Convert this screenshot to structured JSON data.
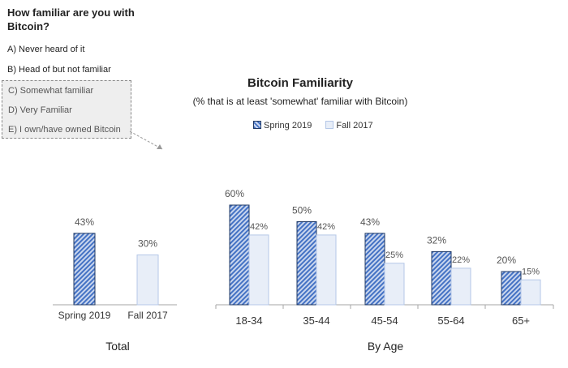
{
  "question": {
    "title": "How familiar are you with Bitcoin?",
    "options": [
      "A) Never heard of it",
      "B) Head of but not familiar",
      "C) Somewhat familiar",
      "D) Very Familiar",
      "E) I own/have owned Bitcoin"
    ],
    "highlighted_options": [
      "C) Somewhat familiar",
      "D) Very Familiar",
      "E) I own/have owned Bitcoin"
    ]
  },
  "colors": {
    "spring_stroke": "#1f3864",
    "spring_fill": "#4472c4",
    "spring_fill_light": "#c9d6ee",
    "fall_fill": "#e8eef8",
    "fall_stroke": "#b4c7e7",
    "axis": "#a6a6a6"
  },
  "chart_data": [
    {
      "type": "bar",
      "title": "Bitcoin Familiarity",
      "subtitle": "(% that is at least 'somewhat' familiar with Bitcoin)",
      "xlabel": "Total",
      "categories": [
        "Spring 2019",
        "Fall 2017"
      ],
      "values": [
        43,
        30
      ],
      "value_labels": [
        "43%",
        "30%"
      ],
      "ylim": [
        0,
        100
      ],
      "grid": false,
      "legend": "none"
    },
    {
      "type": "bar",
      "title": "Bitcoin Familiarity",
      "subtitle": "(% that is at least 'somewhat' familiar with Bitcoin)",
      "xlabel": "By Age",
      "categories": [
        "18-34",
        "35-44",
        "45-54",
        "55-64",
        "65+"
      ],
      "series": [
        {
          "name": "Spring 2019",
          "values": [
            60,
            50,
            43,
            32,
            20
          ],
          "labels": [
            "60%",
            "50%",
            "43%",
            "32%",
            "20%"
          ]
        },
        {
          "name": "Fall 2017",
          "values": [
            42,
            42,
            25,
            22,
            15
          ],
          "labels": [
            "42%",
            "42%",
            "25%",
            "22%",
            "15%"
          ]
        }
      ],
      "ylim": [
        0,
        100
      ],
      "grid": false,
      "legend": "top-center"
    }
  ]
}
